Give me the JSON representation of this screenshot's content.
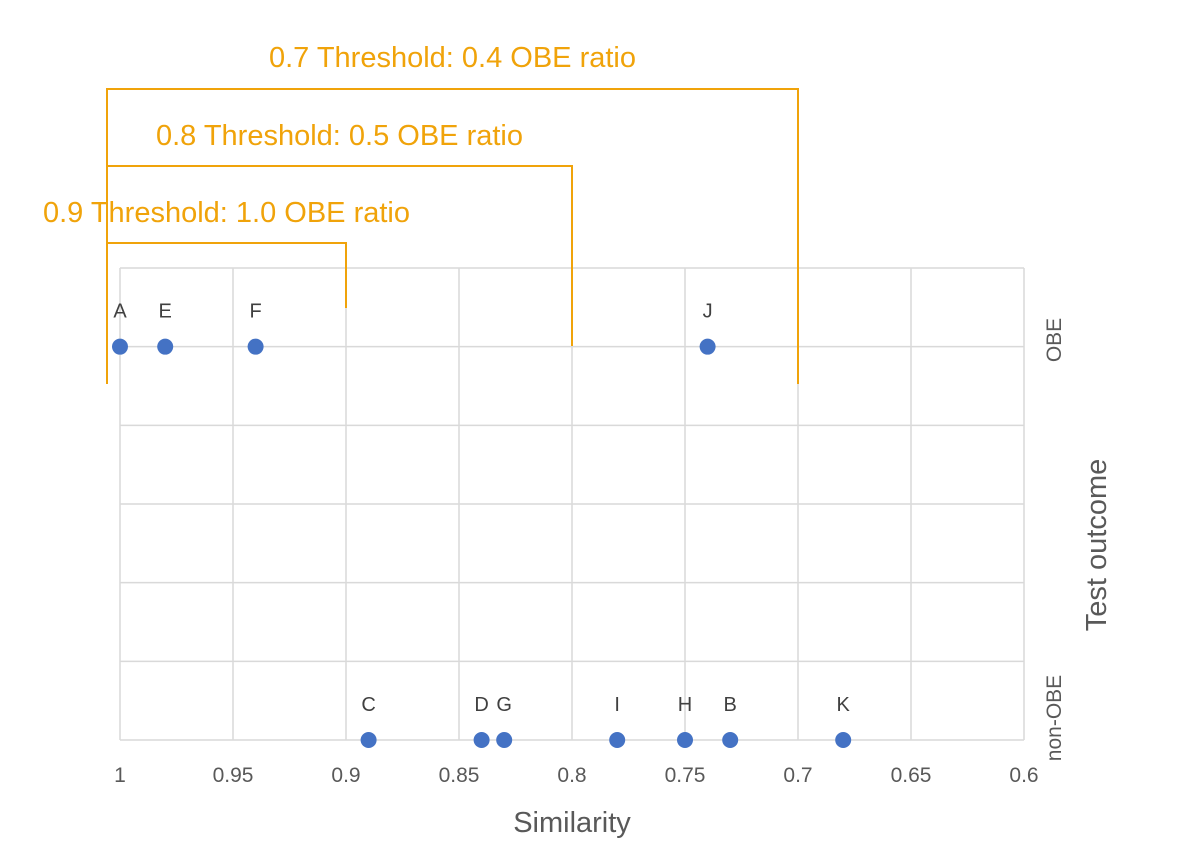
{
  "chart_data": {
    "type": "scatter",
    "title": "",
    "xlabel": "Similarity",
    "ylabel": "Test outcome",
    "xlim": [
      1,
      0.6
    ],
    "x_reversed": true,
    "x_ticks": [
      "1",
      "0.95",
      "0.9",
      "0.85",
      "0.8",
      "0.75",
      "0.7",
      "0.65",
      "0.6"
    ],
    "x_tick_values": [
      1,
      0.95,
      0.9,
      0.85,
      0.8,
      0.75,
      0.7,
      0.65,
      0.6
    ],
    "y_categories": [
      "non-OBE",
      "OBE"
    ],
    "grid": true,
    "legend": "none",
    "series": [
      {
        "color": "#4472C4",
        "points": [
          {
            "label": "A",
            "x": 1.0,
            "y": "OBE"
          },
          {
            "label": "E",
            "x": 0.98,
            "y": "OBE"
          },
          {
            "label": "F",
            "x": 0.94,
            "y": "OBE"
          },
          {
            "label": "J",
            "x": 0.74,
            "y": "OBE"
          },
          {
            "label": "C",
            "x": 0.89,
            "y": "non-OBE"
          },
          {
            "label": "D",
            "x": 0.84,
            "y": "non-OBE"
          },
          {
            "label": "G",
            "x": 0.83,
            "y": "non-OBE"
          },
          {
            "label": "I",
            "x": 0.78,
            "y": "non-OBE"
          },
          {
            "label": "H",
            "x": 0.75,
            "y": "non-OBE"
          },
          {
            "label": "B",
            "x": 0.73,
            "y": "non-OBE"
          },
          {
            "label": "K",
            "x": 0.68,
            "y": "non-OBE"
          }
        ]
      }
    ],
    "annotations": [
      {
        "text": "0.7 Threshold: 0.4 OBE ratio",
        "threshold": 0.7
      },
      {
        "text": "0.8 Threshold: 0.5 OBE ratio",
        "threshold": 0.8
      },
      {
        "text": "0.9 Threshold: 1.0 OBE ratio",
        "threshold": 0.9
      }
    ],
    "colors": {
      "points": "#4472C4",
      "annotation": "#F0A30A",
      "grid": "#D9D9D9",
      "text": "#595959"
    }
  }
}
